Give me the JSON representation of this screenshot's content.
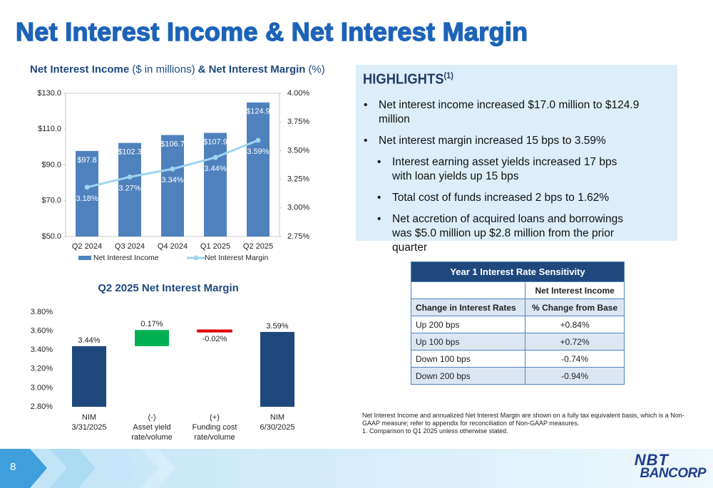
{
  "title": "Net Interest Income & Net Interest Margin",
  "chart_data": [
    {
      "type": "bar",
      "title_parts": [
        "Net Interest Income",
        "($ in millions)",
        "& Net Interest Margin",
        "(%)"
      ],
      "categories": [
        "Q2 2024",
        "Q3 2024",
        "Q4 2024",
        "Q1 2025",
        "Q2 2025"
      ],
      "series": [
        {
          "name": "Net Interest Income",
          "type": "bar",
          "color": "#4f81bd",
          "values": [
            97.8,
            102.3,
            106.7,
            107.9,
            124.9
          ],
          "value_labels": [
            "$97.8",
            "$102.3",
            "$106.7",
            "$107.9",
            "$124.9"
          ]
        },
        {
          "name": "Net Interest Margin",
          "type": "line",
          "axis": "y2",
          "color": "#9fd5ef",
          "values": [
            3.18,
            3.27,
            3.34,
            3.44,
            3.59
          ],
          "value_labels": [
            "3.18%",
            "3.27%",
            "3.34%",
            "3.44%",
            "3.59%"
          ]
        }
      ],
      "ylim": [
        50,
        130
      ],
      "yticks": [
        {
          "value": 50,
          "label": "$50.0"
        },
        {
          "value": 70,
          "label": "$70.0"
        },
        {
          "value": 90,
          "label": "$90.0"
        },
        {
          "value": 110,
          "label": "$110.0"
        },
        {
          "value": 130,
          "label": "$130.0"
        }
      ],
      "y2lim": [
        2.75,
        4.0
      ],
      "y2ticks": [
        {
          "value": 2.75,
          "label": "2.75%"
        },
        {
          "value": 3.0,
          "label": "3.00%"
        },
        {
          "value": 3.25,
          "label": "3.25%"
        },
        {
          "value": 3.5,
          "label": "3.50%"
        },
        {
          "value": 3.75,
          "label": "3.75%"
        },
        {
          "value": 4.0,
          "label": "4.00%"
        }
      ],
      "legend": "bottom"
    },
    {
      "type": "waterfall",
      "title": "Q2 2025 Net Interest Margin",
      "categories": [
        "NIM\n3/31/2025",
        "(-)\nAsset yield\nrate/volume",
        "(+)\nFunding cost\nrate/volume",
        "NIM\n6/30/2025"
      ],
      "values": [
        3.44,
        0.17,
        -0.02,
        3.59
      ],
      "value_labels": [
        "3.44%",
        "0.17%",
        "-0.02%",
        "3.59%"
      ],
      "totals": [
        true,
        false,
        false,
        true
      ],
      "colors": [
        "#1f497d",
        "#00b050",
        "#e00000",
        "#1f497d"
      ],
      "ylim": [
        2.8,
        3.8
      ],
      "yticks": [
        {
          "value": 2.8,
          "label": "2.80%"
        },
        {
          "value": 3.0,
          "label": "3.00%"
        },
        {
          "value": 3.2,
          "label": "3.20%"
        },
        {
          "value": 3.4,
          "label": "3.40%"
        },
        {
          "value": 3.6,
          "label": "3.60%"
        },
        {
          "value": 3.8,
          "label": "3.80%"
        }
      ]
    }
  ],
  "highlights": {
    "title": "HIGHLIGHTS",
    "note": "(1)",
    "bullets": [
      {
        "level": 1,
        "text": "Net interest income increased $17.0 million to $124.9 million"
      },
      {
        "level": 1,
        "text": "Net interest margin increased 15 bps to 3.59%"
      },
      {
        "level": 2,
        "text": "Interest earning asset yields increased 17 bps with loan yields up 15 bps"
      },
      {
        "level": 2,
        "text": "Total cost of funds increased 2 bps to 1.62%"
      },
      {
        "level": 2,
        "text": "Net accretion of acquired loans and borrowings was $5.0 million up $2.8 million from the prior quarter"
      }
    ]
  },
  "table": {
    "title": "Year 1 Interest Rate Sensitivity",
    "group_header": "Net Interest Income",
    "columns": [
      "Change in Interest Rates",
      "% Change from Base"
    ],
    "rows": [
      [
        "Up 200 bps",
        "+0.84%"
      ],
      [
        "Up 100 bps",
        "+0.72%"
      ],
      [
        "Down 100 bps",
        "-0.74%"
      ],
      [
        "Down 200 bps",
        "-0.94%"
      ]
    ]
  },
  "footnotes": [
    "Net Interest Income and annualized Net Interest Margin are shown on a fully tax equivalent basis, which is a Non-GAAP measure; refer to appendix for reconciliation of Non-GAAP measures.",
    "1. Comparison to Q1 2025 unless otherwise stated."
  ],
  "page_number": "8",
  "logo": [
    "NBT",
    "BANCORP"
  ]
}
